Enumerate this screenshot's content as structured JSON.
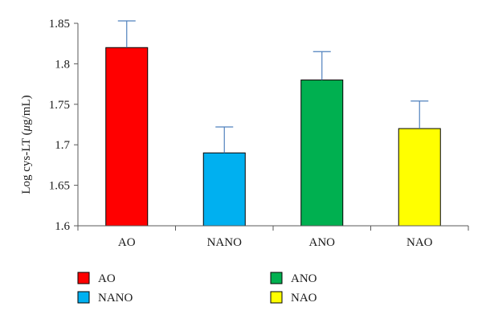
{
  "chart_data": {
    "type": "bar",
    "categories": [
      "AO",
      "NANO",
      "ANO",
      "NAO"
    ],
    "values": [
      1.82,
      1.69,
      1.78,
      1.72
    ],
    "error_upper": [
      1.853,
      1.722,
      1.815,
      1.754
    ],
    "colors": [
      "#ff0000",
      "#00b0f0",
      "#00b050",
      "#ffff00"
    ],
    "ylabel_parts": [
      "Log cys-LT (",
      "μ",
      "g/mL)"
    ],
    "ylim": [
      1.6,
      1.85
    ],
    "yticks": [
      "1.6",
      "1.65",
      "1.7",
      "1.75",
      "1.8",
      "1.85"
    ],
    "ytick_values": [
      1.6,
      1.65,
      1.7,
      1.75,
      1.8,
      1.85
    ],
    "grid": false,
    "legend": {
      "placement": "bottom",
      "items": [
        {
          "label": "AO",
          "color": "#ff0000"
        },
        {
          "label": "ANO",
          "color": "#00b050"
        },
        {
          "label": "NANO",
          "color": "#00b0f0"
        },
        {
          "label": "NAO",
          "color": "#ffff00"
        }
      ]
    }
  }
}
